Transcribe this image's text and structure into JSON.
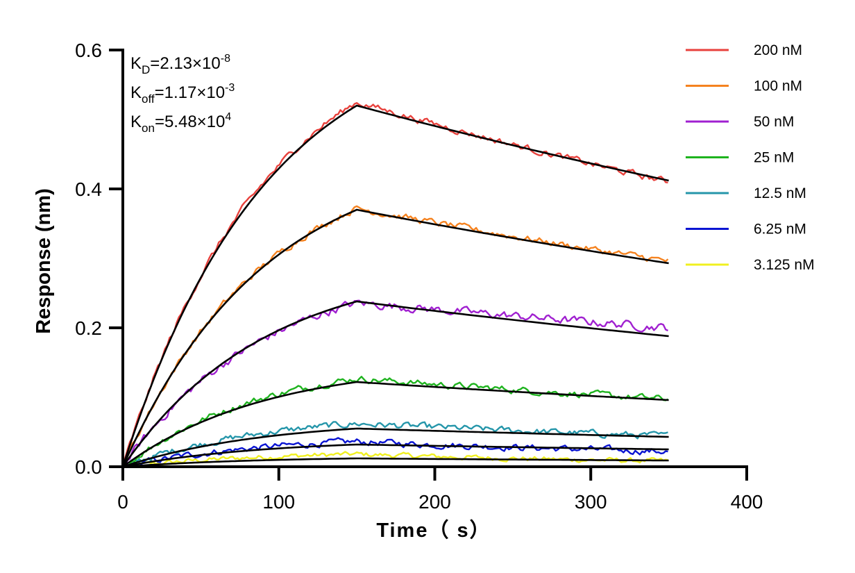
{
  "chart_data": {
    "type": "line",
    "xlabel": "Time（ s）",
    "ylabel": "Response (nm)",
    "xlim": [
      0,
      400
    ],
    "ylim": [
      0,
      0.6
    ],
    "xticks": [
      0,
      100,
      200,
      300,
      400
    ],
    "yticks": [
      0,
      0.2,
      0.4,
      0.6
    ],
    "xtick_labels": [
      "0",
      "100",
      "200",
      "300",
      "400"
    ],
    "ytick_labels": [
      "0.0",
      "0.2",
      "0.4",
      "0.6"
    ],
    "grid": false,
    "legend_position": "top-right",
    "association_end": 150,
    "dissociation_end": 350,
    "kinetics": [
      {
        "base": "K",
        "sub": "D",
        "eq": "=2.13×10",
        "sup": "-8"
      },
      {
        "base": "K",
        "sub": "off",
        "eq": "=1.17×10",
        "sup": "-3"
      },
      {
        "base": "K",
        "sub": "on",
        "eq": "=5.48×10",
        "sup": "4"
      }
    ],
    "series": [
      {
        "name": "200 nM",
        "color": "#e8413c",
        "peak": 0.525,
        "end": 0.41,
        "noise": 0.004
      },
      {
        "name": "100 nM",
        "color": "#f5821f",
        "peak": 0.372,
        "end": 0.296,
        "noise": 0.004
      },
      {
        "name": "50 nM",
        "color": "#a020d0",
        "peak": 0.236,
        "end": 0.2,
        "noise": 0.005
      },
      {
        "name": "25 nM",
        "color": "#1eb31e",
        "peak": 0.127,
        "end": 0.097,
        "noise": 0.004
      },
      {
        "name": "12.5 nM",
        "color": "#2596aa",
        "peak": 0.062,
        "end": 0.044,
        "noise": 0.004
      },
      {
        "name": "6.25 nM",
        "color": "#0a14d2",
        "peak": 0.036,
        "end": 0.022,
        "noise": 0.004
      },
      {
        "name": "3.125 nM",
        "color": "#f0f020",
        "peak": 0.018,
        "end": 0.008,
        "noise": 0.003
      }
    ],
    "fit_curves": [
      {
        "peak": 0.52,
        "end": 0.412,
        "color": "#000000"
      },
      {
        "peak": 0.37,
        "end": 0.293,
        "color": "#000000"
      },
      {
        "peak": 0.238,
        "end": 0.188,
        "color": "#000000"
      },
      {
        "peak": 0.122,
        "end": 0.096,
        "color": "#000000"
      },
      {
        "peak": 0.055,
        "end": 0.043,
        "color": "#000000"
      },
      {
        "peak": 0.032,
        "end": 0.025,
        "color": "#000000"
      },
      {
        "peak": 0.012,
        "end": 0.009,
        "color": "#000000"
      }
    ]
  }
}
